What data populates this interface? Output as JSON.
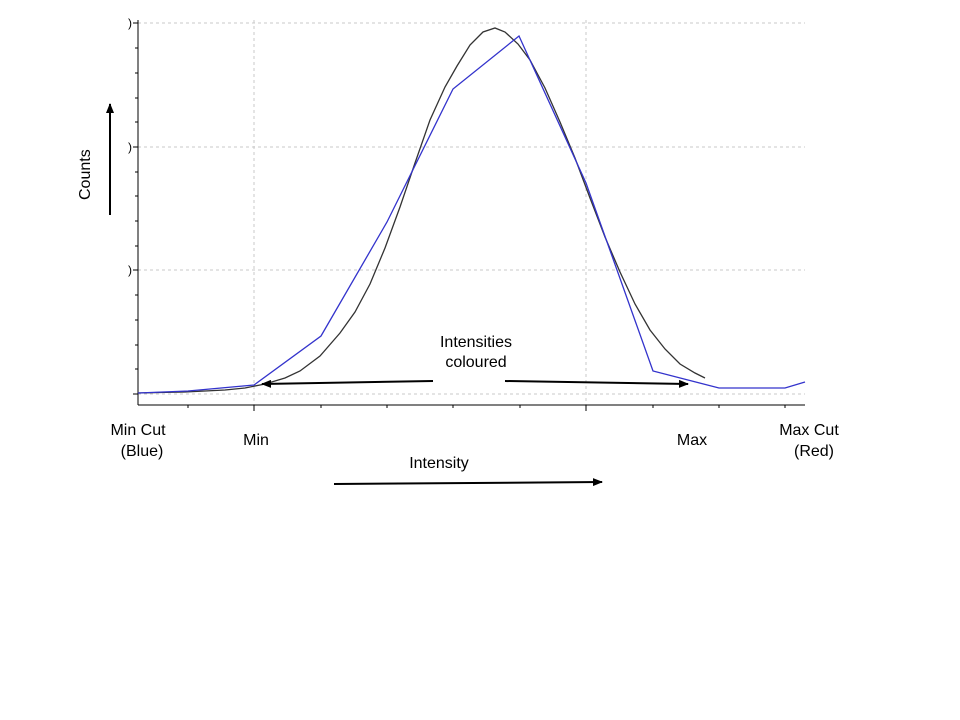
{
  "labels": {
    "counts": "Counts",
    "intensity": "Intensity",
    "intensities_line1": "Intensities",
    "intensities_line2": "coloured",
    "min": "Min",
    "max": "Max",
    "min_cut_line1": "Min Cut",
    "min_cut_line2": "(Blue)",
    "max_cut_line1": "Max Cut",
    "max_cut_line2": "(Red)",
    "y_tick_fragments": [
      ")",
      ")",
      ")"
    ]
  },
  "colors": {
    "histogram": "#3333cc",
    "fit_curve": "#333333",
    "grid": "#c8c8c8",
    "axis": "#000000"
  }
}
